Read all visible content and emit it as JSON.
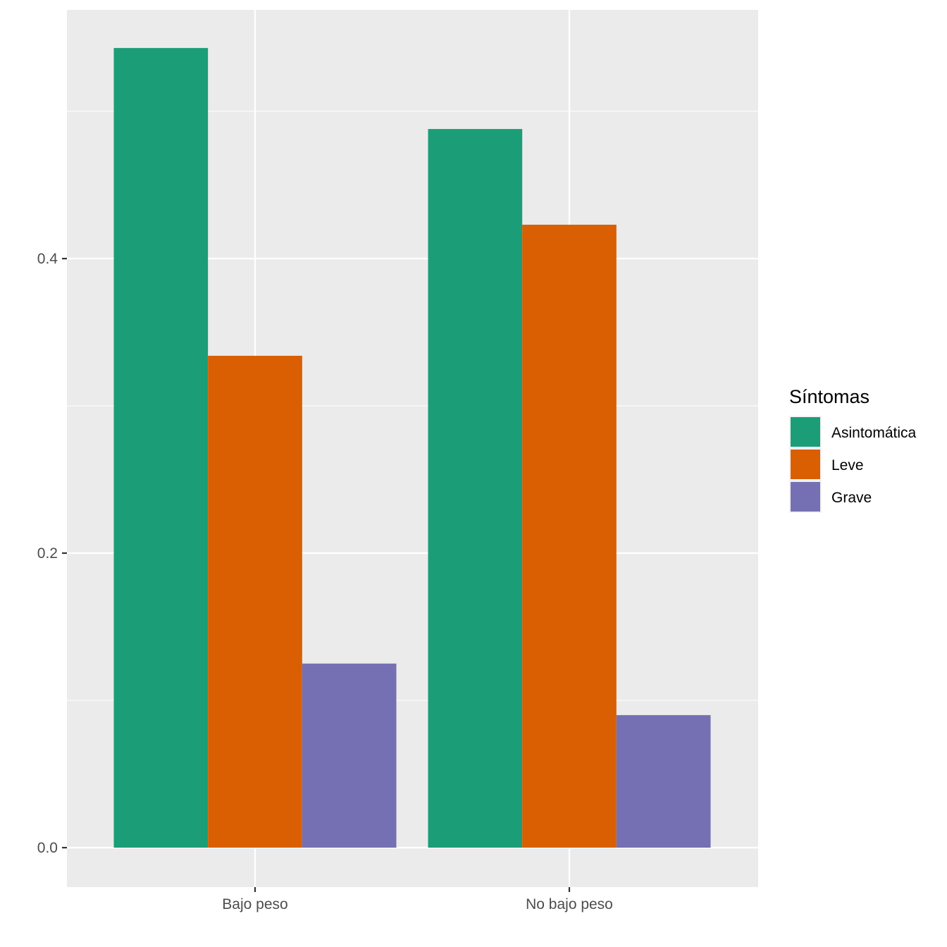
{
  "chart_data": {
    "type": "bar",
    "categories": [
      "Bajo peso",
      "No bajo peso"
    ],
    "series": [
      {
        "name": "Asintomática",
        "values": [
          0.543,
          0.488
        ],
        "color": "#1B9E77"
      },
      {
        "name": "Leve",
        "values": [
          0.334,
          0.423
        ],
        "color": "#D95F02"
      },
      {
        "name": "Grave",
        "values": [
          0.125,
          0.09
        ],
        "color": "#7570B3"
      }
    ],
    "title": "",
    "xlabel": "",
    "ylabel": "",
    "ylim": [
      -0.027,
      0.57
    ],
    "yticks": [
      0.0,
      0.2,
      0.4
    ],
    "ytick_labels": [
      "0.0",
      "0.2",
      "0.4"
    ],
    "legend_title": "Síntomas",
    "legend_position": "right",
    "grid": true
  }
}
